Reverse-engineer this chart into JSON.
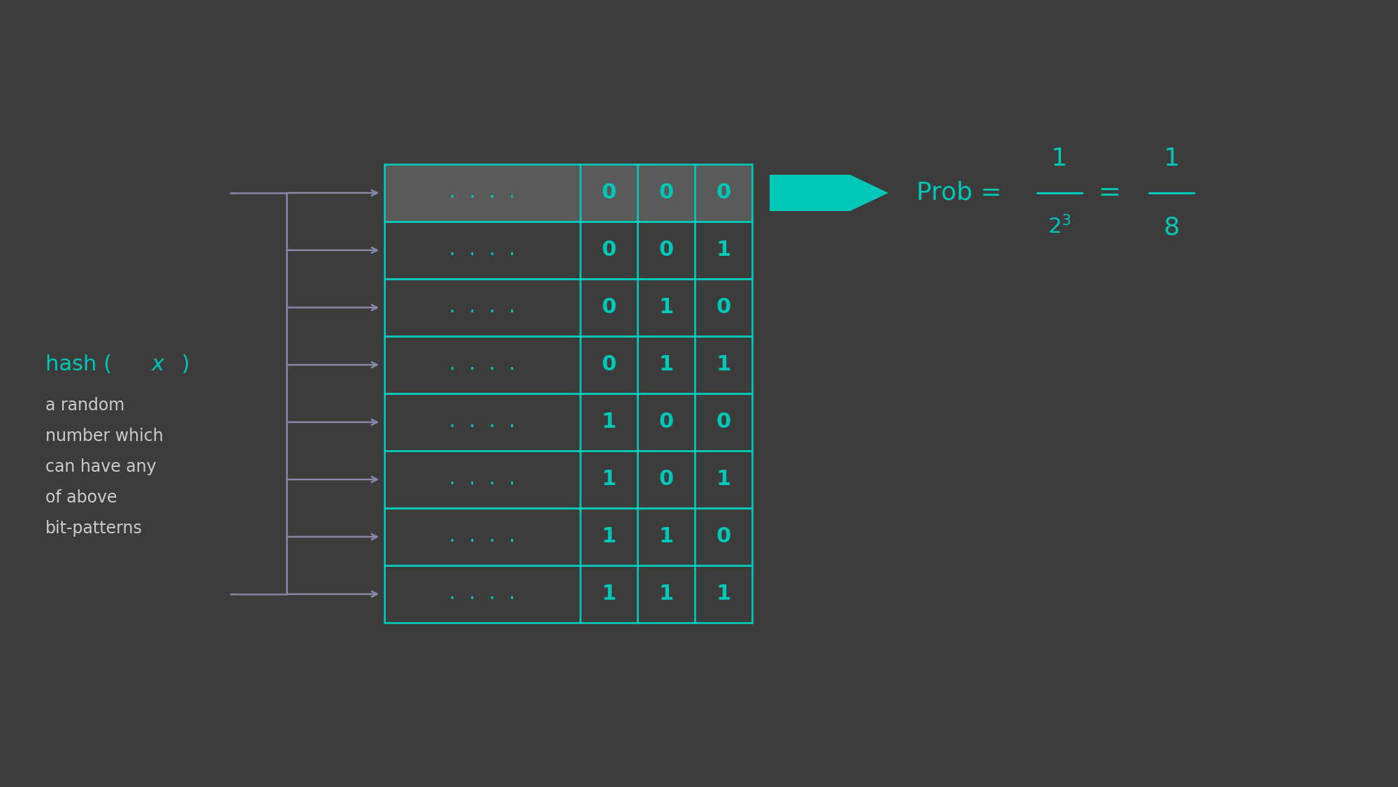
{
  "bg_color": "#3c3c3c",
  "cyan": "#00c8b8",
  "gray_arrow": "#8888aa",
  "cell_bg_dark": "#3c3c3c",
  "cell_bg_highlight": "#5a5a5a",
  "rows": [
    [
      "0",
      "0",
      "0"
    ],
    [
      "0",
      "0",
      "1"
    ],
    [
      "0",
      "1",
      "0"
    ],
    [
      "0",
      "1",
      "1"
    ],
    [
      "1",
      "0",
      "0"
    ],
    [
      "1",
      "0",
      "1"
    ],
    [
      "1",
      "1",
      "0"
    ],
    [
      "1",
      "1",
      "1"
    ]
  ],
  "dots_text": ". . . .",
  "hash_label_parts": [
    "hash (",
    "x",
    ")"
  ],
  "desc_lines": [
    "a random",
    "number which",
    "can have any",
    "of above",
    "bit-patterns"
  ],
  "text_color_light": "#cccccc"
}
